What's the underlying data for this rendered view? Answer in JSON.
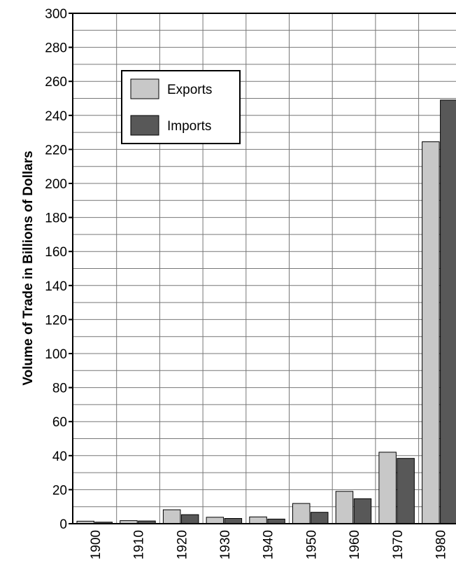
{
  "chart_data": {
    "type": "bar",
    "title": "",
    "xlabel": "",
    "ylabel": "Volume of Trade in Billions of Dollars",
    "categories": [
      "1900",
      "1910",
      "1920",
      "1930",
      "1940",
      "1950",
      "1960",
      "1970",
      "1980"
    ],
    "series": [
      {
        "name": "Exports",
        "color": "#c8c8c8",
        "values": [
          1.5,
          1.8,
          8.2,
          3.8,
          4.0,
          11.9,
          19.0,
          42.0,
          224.5
        ]
      },
      {
        "name": "Imports",
        "color": "#585858",
        "values": [
          0.9,
          1.6,
          5.3,
          3.1,
          2.7,
          6.7,
          14.7,
          38.4,
          249.0
        ]
      }
    ],
    "ylim": [
      0,
      300
    ],
    "yticks": [
      0,
      20,
      40,
      60,
      80,
      100,
      120,
      140,
      160,
      180,
      200,
      220,
      240,
      260,
      280,
      300
    ],
    "grid": true,
    "legend_position": "top-left"
  }
}
